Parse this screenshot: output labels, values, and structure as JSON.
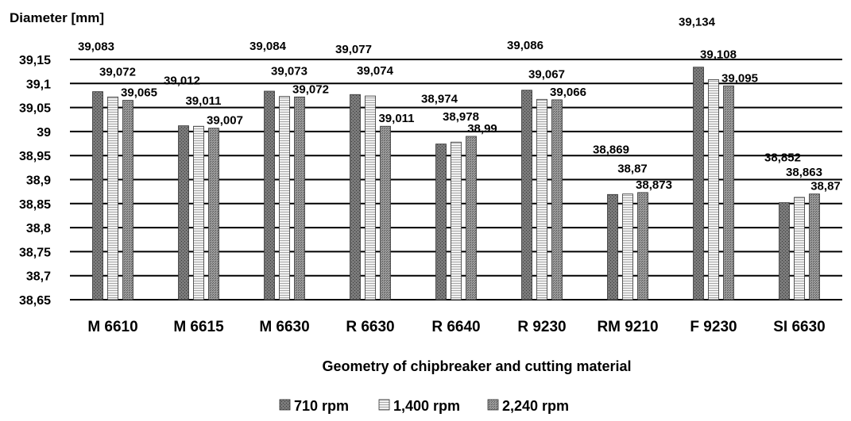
{
  "chart_data": {
    "type": "bar",
    "title": "",
    "ylabel": "Diameter [mm]",
    "xlabel": "Geometry of chipbreaker and cutting material",
    "ylim": [
      38.65,
      39.15
    ],
    "y_ticks": [
      38.65,
      38.7,
      38.75,
      38.8,
      38.85,
      38.9,
      38.95,
      39.0,
      39.05,
      39.1,
      39.15
    ],
    "y_tick_labels": [
      "38,65",
      "38,7",
      "38,75",
      "38,8",
      "38,85",
      "38,9",
      "38,95",
      "39",
      "39,05",
      "39,1",
      "39,15"
    ],
    "grid": true,
    "legend_position": "bottom",
    "categories": [
      "M 6610",
      "M 6615",
      "M 6630",
      "R 6630",
      "R 6640",
      "R 9230",
      "RM 9210",
      "F 9230",
      "SI 6630"
    ],
    "series": [
      {
        "name": "710 rpm",
        "color": "#7f7f7f",
        "pattern": "dark-dots",
        "values": [
          39.083,
          39.012,
          39.084,
          39.077,
          38.974,
          39.086,
          38.869,
          39.134,
          38.852
        ],
        "labels": [
          "39,083",
          "39,012",
          "39,084",
          "39,077",
          "38,974",
          "39,086",
          "38,869",
          "39,134",
          "38,852"
        ]
      },
      {
        "name": "1,400 rpm",
        "color": "#e0e0e0",
        "pattern": "light-lines",
        "values": [
          39.072,
          39.011,
          39.073,
          39.074,
          38.978,
          39.067,
          38.87,
          39.108,
          38.863
        ],
        "labels": [
          "39,072",
          "39,011",
          "39,073",
          "39,074",
          "38,978",
          "39,067",
          "38,87",
          "39,108",
          "38,863"
        ]
      },
      {
        "name": "2,240 rpm",
        "color": "#8c8c8c",
        "pattern": "dense-dots",
        "values": [
          39.065,
          39.007,
          39.072,
          39.011,
          38.99,
          39.066,
          38.873,
          39.095,
          38.87
        ],
        "labels": [
          "39,065",
          "39,007",
          "39,072",
          "39,011",
          "38,99",
          "39,066",
          "38,873",
          "39,095",
          "38,87"
        ]
      }
    ]
  }
}
